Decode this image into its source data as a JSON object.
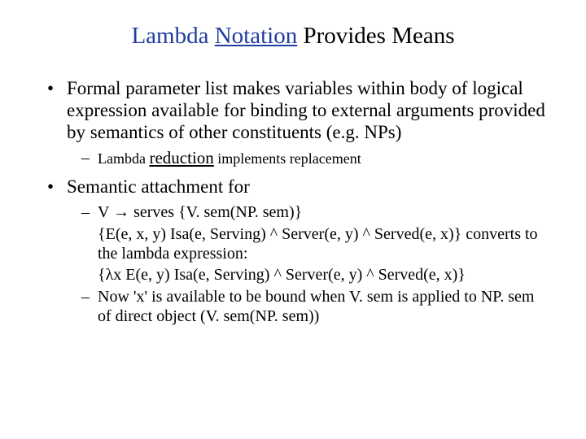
{
  "title": {
    "part1": "Lambda ",
    "part2_underlined": "Notation",
    "part3": " Provides Means"
  },
  "bullets": {
    "b1": "Formal parameter list makes variables within body of logical expression available for binding to external arguments provided by semantics of other constituents (e.g. NPs)",
    "b1_sub": {
      "pre": "Lambda ",
      "mid_underlined": "reduction",
      "post": " implements replacement"
    },
    "b2": "Semantic attachment for",
    "b2_subs": {
      "s1": "V → serves {V. sem(NP. sem)}",
      "s2": "{E(e, x, y) Isa(e, Serving) ^ Server(e, y) ^ Served(e, x)} converts to the lambda expression:",
      "s3": "{λx  E(e, y) Isa(e, Serving) ^ Server(e, y) ^ Served(e, x)}",
      "s4": "Now 'x' is available to be bound when V. sem is applied to NP. sem of direct object (V. sem(NP. sem))"
    }
  },
  "colors": {
    "title_accent": "#1f3da1",
    "text": "#000000",
    "background": "#ffffff"
  },
  "fonts": {
    "family": "Times New Roman",
    "title_size_pt": 29,
    "body_size_pt": 23,
    "sub_size_pt": 20
  }
}
